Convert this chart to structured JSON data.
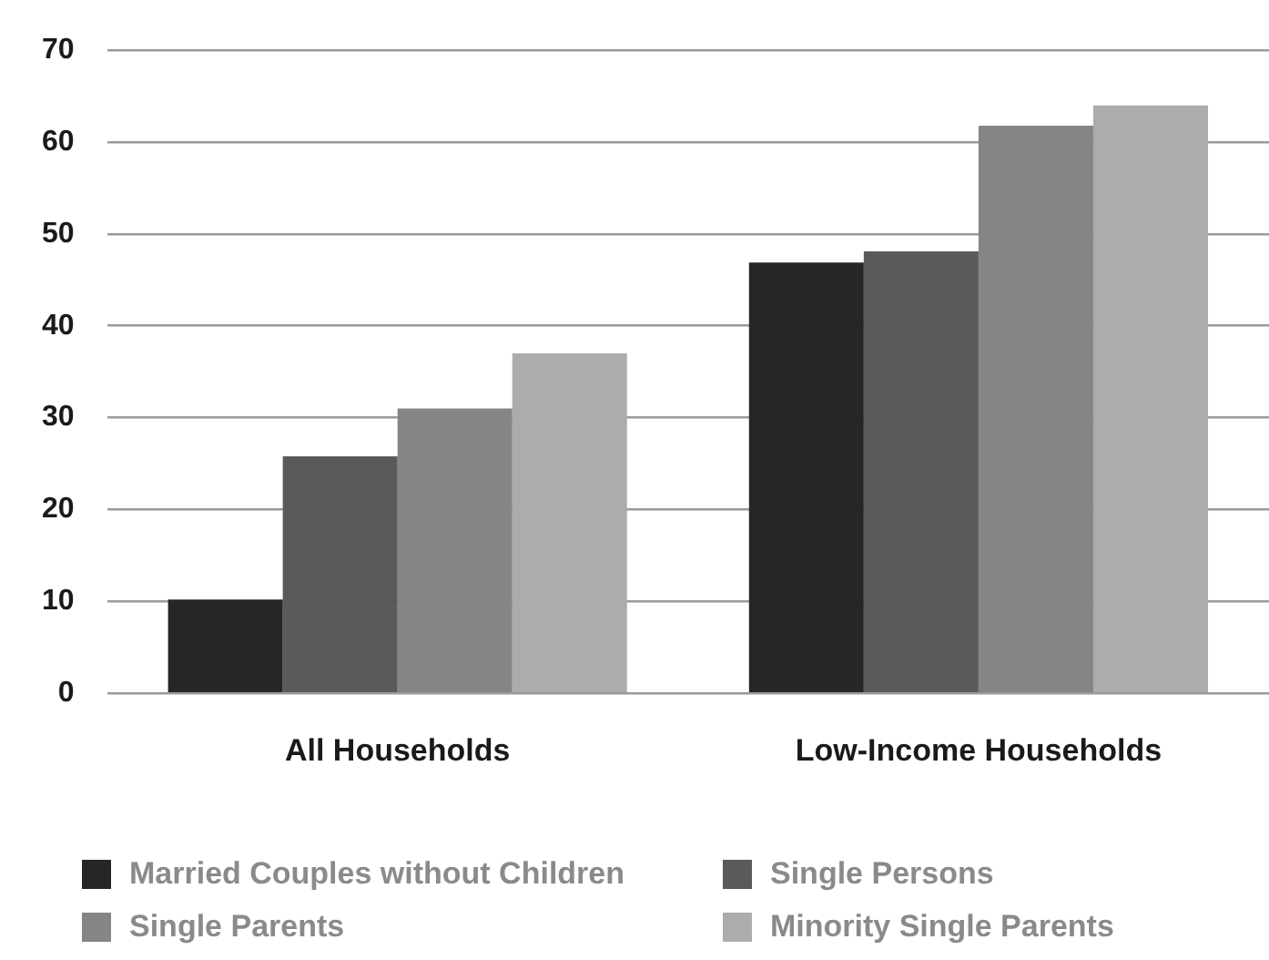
{
  "chart_data": {
    "type": "bar",
    "categories": [
      "All Households",
      "Low-Income Households"
    ],
    "series": [
      {
        "name": "Married Couples without Children",
        "color": "#262626",
        "values": [
          10.2,
          46.9
        ]
      },
      {
        "name": "Single Persons",
        "color": "#5a5a5a",
        "values": [
          25.8,
          48.1
        ]
      },
      {
        "name": "Single Parents",
        "color": "#858585",
        "values": [
          31,
          61.8
        ]
      },
      {
        "name": "Minority Single Parents",
        "color": "#acacac",
        "values": [
          37,
          64
        ]
      }
    ],
    "ylim": [
      0,
      70
    ],
    "yticks": [
      0,
      10,
      20,
      30,
      40,
      50,
      60,
      70
    ],
    "grid": "y",
    "legend": "bottom"
  }
}
